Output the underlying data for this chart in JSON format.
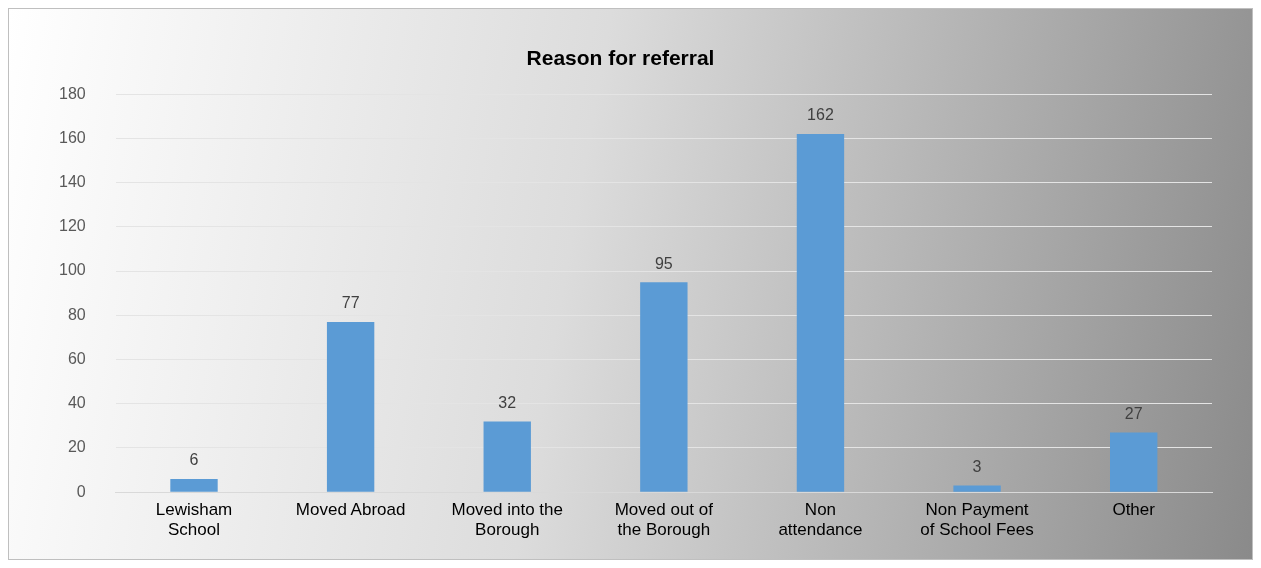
{
  "chart_data": {
    "type": "bar",
    "title": "Reason for referral",
    "categories": [
      "Lewisham\nSchool",
      "Moved Abroad",
      "Moved into the\nBorough",
      "Moved out of\nthe Borough",
      "Non\nattendance",
      "Non Payment\nof School Fees",
      "Other"
    ],
    "values": [
      6,
      77,
      32,
      95,
      162,
      3,
      27
    ],
    "color": "#5b9bd5",
    "ylim": [
      0,
      180
    ],
    "yticks": [
      0,
      20,
      40,
      60,
      80,
      100,
      120,
      140,
      160,
      180
    ],
    "grid": "y",
    "data_labels": true
  }
}
